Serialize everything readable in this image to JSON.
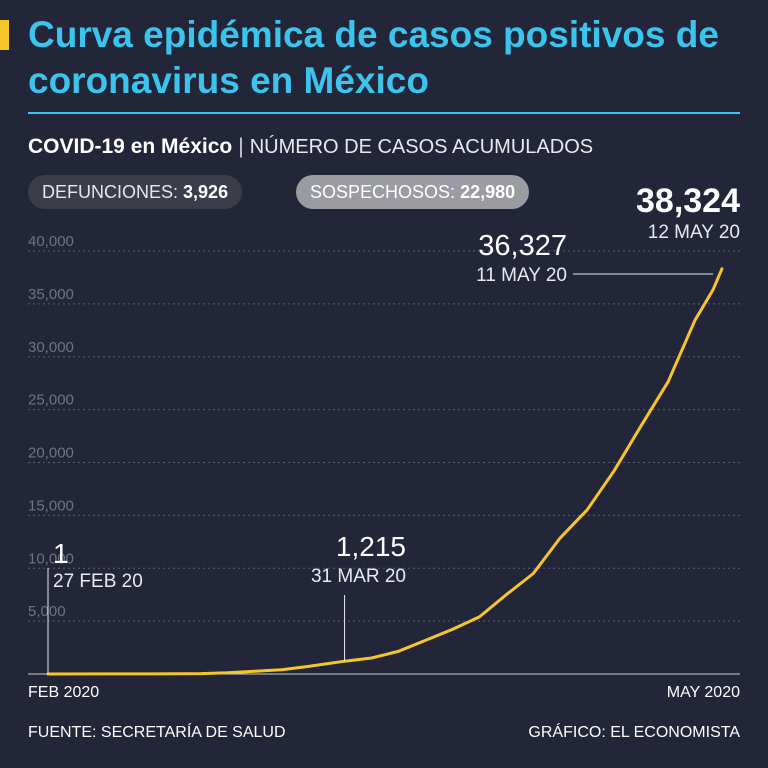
{
  "header": {
    "title": "Curva epidémica de casos positivos de coronavirus en México",
    "subtitle_main": "COVID-19 en México",
    "subtitle_sep": "|",
    "subtitle_desc": "NÚMERO DE CASOS ACUMULADOS"
  },
  "badges": {
    "deaths_label": "DEFUNCIONES:",
    "deaths_value": "3,926",
    "suspected_label": "SOSPECHOSOS:",
    "suspected_value": "22,980"
  },
  "footer": {
    "source": "FUENTE: SECRETARÍA DE SALUD",
    "credit": "GRÁFICO: EL ECONOMISTA"
  },
  "colors": {
    "background": "#222638",
    "title": "#3bc4ee",
    "line": "#f6c629",
    "grid": "#5a5e70"
  },
  "chart_data": {
    "type": "line",
    "xlabel": "",
    "ylabel": "",
    "x_start_label": "FEB 2020",
    "x_end_label": "MAY 2020",
    "x_range": [
      "2020-02-27",
      "2020-05-12"
    ],
    "ylim": [
      0,
      40000
    ],
    "yticks": [
      "5,000",
      "10,000",
      "15,000",
      "20,000",
      "25,000",
      "30,000",
      "35,000",
      "40,000"
    ],
    "grid": true,
    "series": [
      {
        "points": [
          [
            "2020-02-27",
            1
          ],
          [
            "2020-03-05",
            5
          ],
          [
            "2020-03-10",
            7
          ],
          [
            "2020-03-15",
            41
          ],
          [
            "2020-03-18",
            118
          ],
          [
            "2020-03-21",
            251
          ],
          [
            "2020-03-24",
            405
          ],
          [
            "2020-03-27",
            717
          ],
          [
            "2020-03-31",
            1215
          ],
          [
            "2020-04-03",
            1510
          ],
          [
            "2020-04-06",
            2143
          ],
          [
            "2020-04-09",
            3181
          ],
          [
            "2020-04-12",
            4219
          ],
          [
            "2020-04-15",
            5399
          ],
          [
            "2020-04-18",
            7497
          ],
          [
            "2020-04-21",
            9501
          ],
          [
            "2020-04-24",
            12872
          ],
          [
            "2020-04-27",
            15529
          ],
          [
            "2020-04-30",
            19224
          ],
          [
            "2020-05-03",
            23471
          ],
          [
            "2020-05-06",
            27634
          ],
          [
            "2020-05-09",
            33460
          ],
          [
            "2020-05-11",
            36327
          ],
          [
            "2020-05-12",
            38324
          ]
        ]
      }
    ],
    "annotations": [
      {
        "date": "2020-02-27",
        "value": 1,
        "value_label": "1",
        "date_label": "27 FEB 20"
      },
      {
        "date": "2020-03-31",
        "value": 1215,
        "value_label": "1,215",
        "date_label": "31 MAR 20"
      },
      {
        "date": "2020-05-11",
        "value": 36327,
        "value_label": "36,327",
        "date_label": "11 MAY 20"
      },
      {
        "date": "2020-05-12",
        "value": 38324,
        "value_label": "38,324",
        "date_label": "12 MAY 20"
      }
    ]
  }
}
